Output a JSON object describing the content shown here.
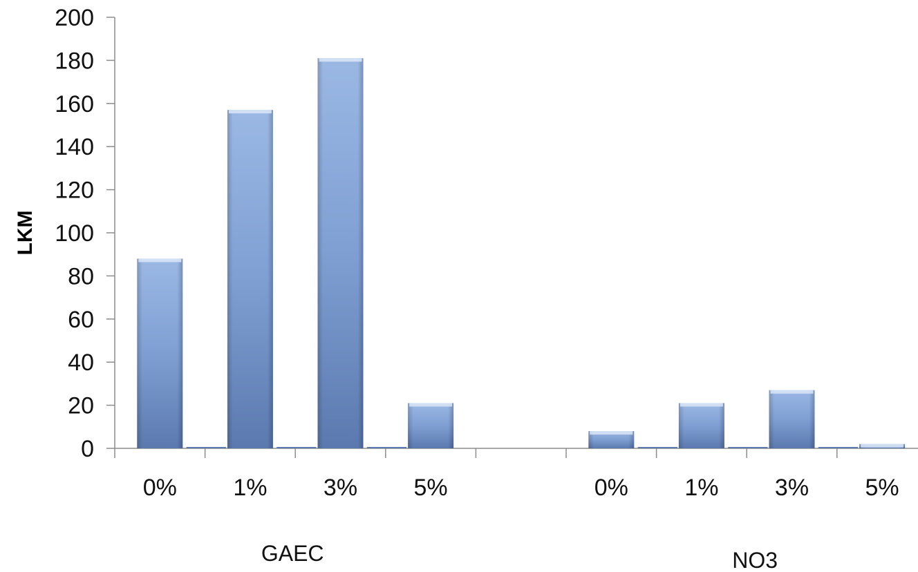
{
  "chart_data": {
    "type": "bar",
    "title": "",
    "xlabel": "",
    "ylabel": "LKM",
    "ylim": [
      0,
      200
    ],
    "y_ticks": [
      0,
      20,
      40,
      60,
      80,
      100,
      120,
      140,
      160,
      180,
      200
    ],
    "grid": false,
    "groups": [
      {
        "name": "GAEC",
        "categories": [
          "0%",
          "1%",
          "3%",
          "5%"
        ],
        "values": [
          88,
          157,
          181,
          21
        ]
      },
      {
        "name": "NO3",
        "categories": [
          "0%",
          "1%",
          "3%",
          "5%"
        ],
        "values": [
          8,
          21,
          27,
          2
        ]
      }
    ],
    "colors": {
      "bar_light": "#9bb8e4",
      "bar_mid": "#7f9fd3",
      "bar_dark": "#5b79ae",
      "axis": "#8c8c8c"
    }
  }
}
